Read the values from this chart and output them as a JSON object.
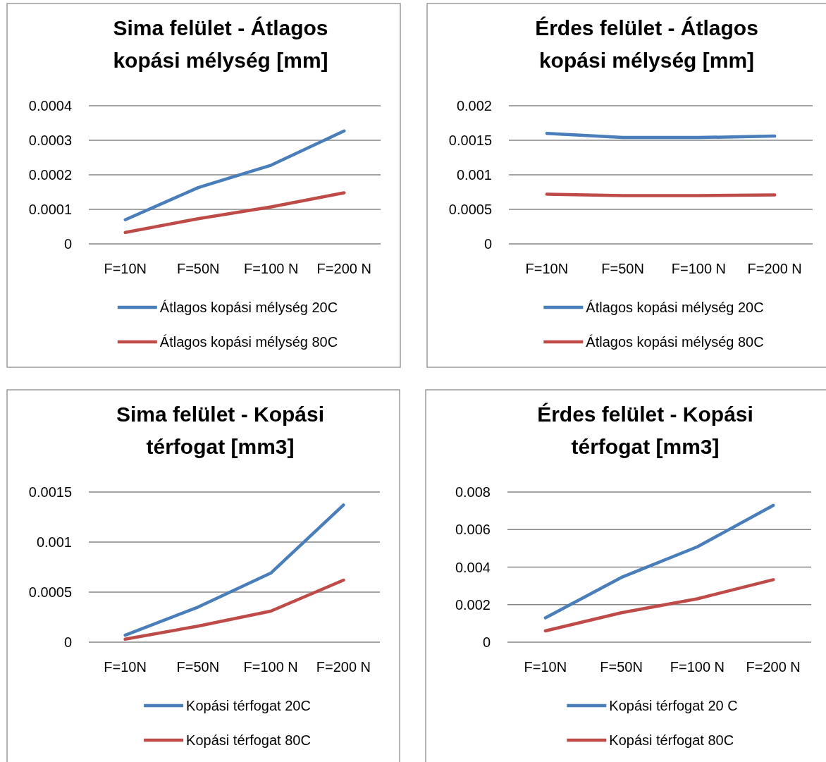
{
  "chart_data": [
    {
      "type": "line",
      "title": "Sima felület - Átlagos kopási mélység [mm]",
      "categories": [
        "F=10N",
        "F=50N",
        "F=100 N",
        "F=200 N"
      ],
      "ylim": [
        0,
        0.0004
      ],
      "yticks": [
        0,
        0.0001,
        0.0002,
        0.0003,
        0.0004
      ],
      "grid": "y",
      "legend": "bottom",
      "series": [
        {
          "name": "Átlagos kopási mélység 20C",
          "color": "#4a7ebb",
          "values": [
            7e-05,
            0.000163,
            0.000228,
            0.000327
          ]
        },
        {
          "name": "Átlagos kopási mélység 80C",
          "color": "#be4b48",
          "values": [
            3.3e-05,
            7.3e-05,
            0.000107,
            0.000148
          ]
        }
      ]
    },
    {
      "type": "line",
      "title": "Érdes felület - Átlagos kopási mélység [mm]",
      "categories": [
        "F=10N",
        "F=50N",
        "F=100 N",
        "F=200 N"
      ],
      "ylim": [
        0,
        0.002
      ],
      "yticks": [
        0,
        0.0005,
        0.001,
        0.0015,
        0.002
      ],
      "grid": "y",
      "legend": "bottom",
      "series": [
        {
          "name": "Átlagos kopási mélység 20C",
          "color": "#4a7ebb",
          "values": [
            0.0016,
            0.00154,
            0.00154,
            0.00156
          ]
        },
        {
          "name": "Átlagos kopási mélység 80C",
          "color": "#be4b48",
          "values": [
            0.00072,
            0.0007,
            0.0007,
            0.00071
          ]
        }
      ]
    },
    {
      "type": "line",
      "title": "Sima felület - Kopási térfogat [mm3]",
      "categories": [
        "F=10N",
        "F=50N",
        "F=100 N",
        "F=200 N"
      ],
      "ylim": [
        0,
        0.0015
      ],
      "yticks": [
        0,
        0.0005,
        0.001,
        0.0015
      ],
      "grid": "y",
      "legend": "bottom",
      "series": [
        {
          "name": "Kopási térfogat 20C",
          "color": "#4a7ebb",
          "values": [
            7e-05,
            0.00035,
            0.00069,
            0.00137
          ]
        },
        {
          "name": "Kopási térfogat 80C",
          "color": "#be4b48",
          "values": [
            3e-05,
            0.00016,
            0.00031,
            0.00062
          ]
        }
      ]
    },
    {
      "type": "line",
      "title": "Érdes felület - Kopási térfogat [mm3]",
      "categories": [
        "F=10N",
        "F=50N",
        "F=100 N",
        "F=200 N"
      ],
      "ylim": [
        0,
        0.008
      ],
      "yticks": [
        0,
        0.002,
        0.004,
        0.006,
        0.008
      ],
      "grid": "y",
      "legend": "bottom",
      "series": [
        {
          "name": "Kopási térfogat 20 C",
          "color": "#4a7ebb",
          "values": [
            0.0013,
            0.00345,
            0.00508,
            0.00729
          ]
        },
        {
          "name": "Kopási térfogat 80C",
          "color": "#be4b48",
          "values": [
            0.0006,
            0.00157,
            0.00231,
            0.00333
          ]
        }
      ]
    }
  ]
}
